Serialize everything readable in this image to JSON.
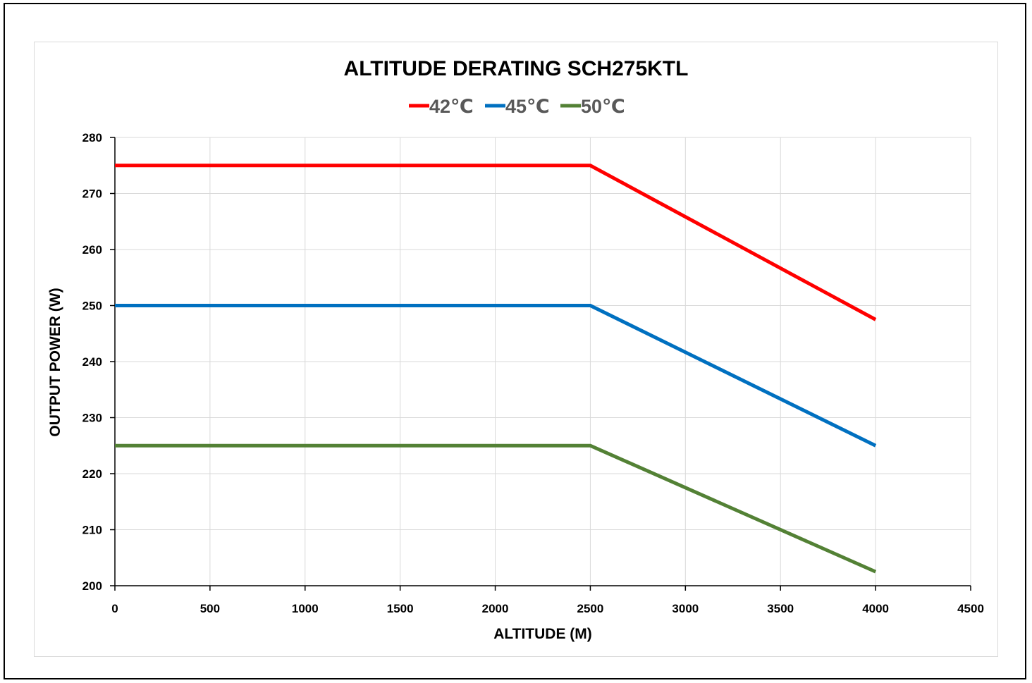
{
  "chart_data": {
    "type": "line",
    "title": "ALTITUDE DERATING SCH275KTL",
    "xlabel": "ALTITUDE (M)",
    "ylabel": "OUTPUT POWER (W)",
    "xlim": [
      0,
      4500
    ],
    "ylim": [
      200,
      280
    ],
    "xticks": [
      0,
      500,
      1000,
      1500,
      2000,
      2500,
      3000,
      3500,
      4000,
      4500
    ],
    "yticks": [
      200,
      210,
      220,
      230,
      240,
      250,
      260,
      270,
      280
    ],
    "grid": true,
    "legend_position": "top",
    "series": [
      {
        "name": "42℃",
        "color": "#ff0000",
        "x": [
          0,
          2500,
          4000
        ],
        "y": [
          275,
          275,
          247.5
        ]
      },
      {
        "name": "45℃",
        "color": "#0070c0",
        "x": [
          0,
          2500,
          4000
        ],
        "y": [
          250,
          250,
          225
        ]
      },
      {
        "name": "50℃",
        "color": "#538135",
        "x": [
          0,
          2500,
          4000
        ],
        "y": [
          225,
          225,
          202.5
        ]
      }
    ]
  }
}
